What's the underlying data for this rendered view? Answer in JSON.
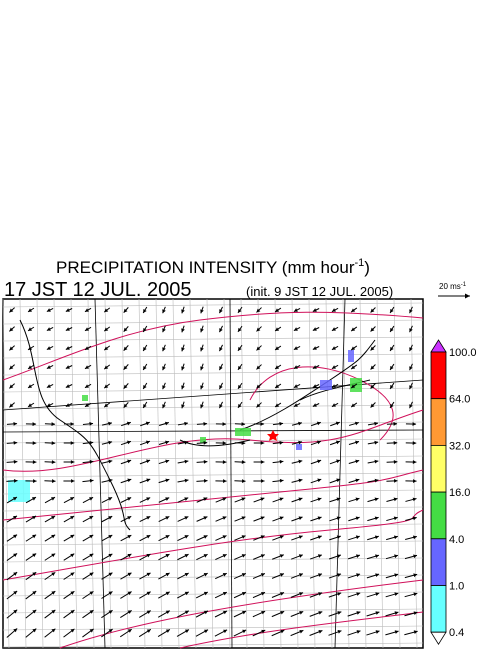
{
  "header": {
    "title": "PRECIPITATION INTENSITY (mm hour",
    "title_exponent": "-1",
    "title_close": ")",
    "valid_time": "17 JST 12 JUL. 2005",
    "init_time": "(init. 9 JST 12 JUL. 2005)"
  },
  "vector_key": {
    "label": "20 ms",
    "exponent": "-1"
  },
  "legend": {
    "levels": [
      "100.0",
      "64.0",
      "32.0",
      "16.0",
      "4.0",
      "1.0",
      "0.4"
    ],
    "colors": [
      "#ff0000",
      "#ff9933",
      "#ffff66",
      "#44dd44",
      "#6666ff",
      "#66ffff"
    ],
    "over_color": "#cc33ff",
    "under_color": "#ffffff"
  }
}
